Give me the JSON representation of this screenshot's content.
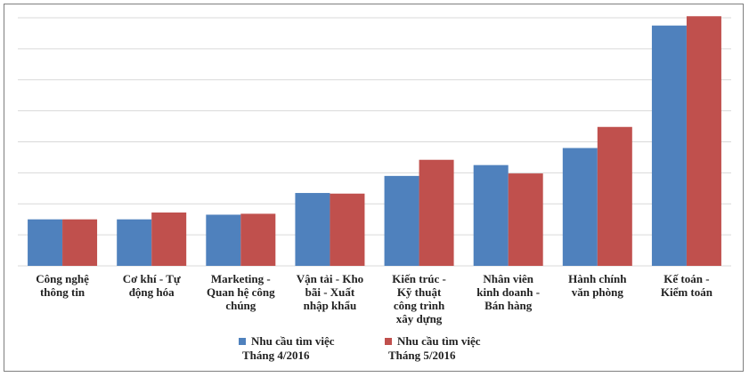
{
  "chart_data": {
    "type": "bar",
    "categories": [
      [
        "Công nghệ",
        "thông tin"
      ],
      [
        "Cơ khí - Tự",
        "động hóa"
      ],
      [
        "Marketing -",
        "Quan hệ công",
        "chúng"
      ],
      [
        "Vận tải - Kho",
        "bãi - Xuất",
        "nhập khẩu"
      ],
      [
        "Kiến trúc -",
        "Kỹ thuật",
        "công trình",
        "xây dựng"
      ],
      [
        "Nhân viên",
        "kinh doanh -",
        "Bán hàng"
      ],
      [
        "Hành chính",
        "văn phòng"
      ],
      [
        "Kế toán -",
        "Kiểm toán"
      ]
    ],
    "series": [
      {
        "name": [
          "Nhu cầu tìm việc",
          "Tháng 4/2016"
        ],
        "color": "#4f81bd",
        "values": [
          1.5,
          1.5,
          1.65,
          2.35,
          2.9,
          3.25,
          3.8,
          7.75
        ]
      },
      {
        "name": [
          "Nhu cầu tìm việc",
          "Tháng 5/2016"
        ],
        "color": "#c0504d",
        "values": [
          1.5,
          1.72,
          1.68,
          2.33,
          3.42,
          2.98,
          4.48,
          8.05
        ]
      }
    ],
    "ylim": [
      0,
      8
    ],
    "gridlines": 8,
    "grid": true,
    "legend_position": "bottom"
  }
}
